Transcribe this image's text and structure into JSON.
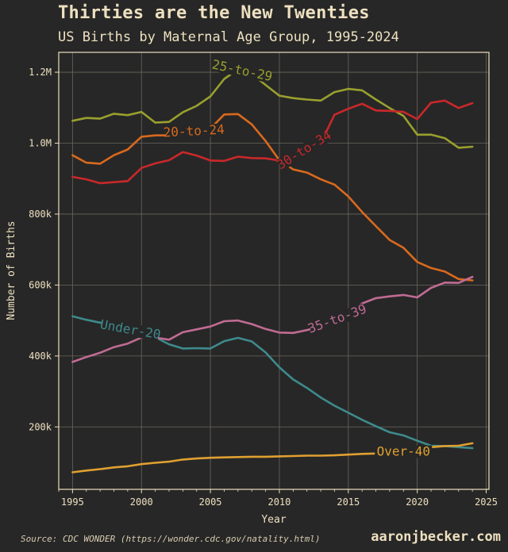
{
  "title": "Thirties are the New Twenties",
  "subtitle": "US Births by Maternal Age Group, 1995-2024",
  "source": "Source: CDC WONDER (https://wonder.cdc.gov/natality.html)",
  "brand": "aaronjbecker.com",
  "chart_data": {
    "type": "line",
    "title": "Thirties are the New Twenties",
    "subtitle": "US Births by Maternal Age Group, 1995-2024",
    "xlabel": "Year",
    "ylabel": "Number of Births",
    "xlim": [
      1994,
      2025.2
    ],
    "ylim": [
      24000,
      1256000
    ],
    "grid": true,
    "legend": "inline labels",
    "x_ticks": [
      1995,
      2000,
      2005,
      2010,
      2015,
      2020,
      2025
    ],
    "y_ticks": [
      200000,
      400000,
      600000,
      800000,
      1000000,
      1200000
    ],
    "y_tick_labels": [
      "200k",
      "400k",
      "600k",
      "800k",
      "1.0M",
      "1.2M"
    ],
    "x": [
      1995,
      1996,
      1997,
      1998,
      1999,
      2000,
      2001,
      2002,
      2003,
      2004,
      2005,
      2006,
      2007,
      2008,
      2009,
      2010,
      2011,
      2012,
      2013,
      2014,
      2015,
      2016,
      2017,
      2018,
      2019,
      2020,
      2021,
      2022,
      2023,
      2024
    ],
    "series": [
      {
        "name": "Under 20",
        "label": "Under-20",
        "color": "#3e8a8c",
        "values": [
          512000,
          502000,
          494000,
          486000,
          475000,
          469000,
          453000,
          433000,
          421000,
          422000,
          421000,
          442000,
          451000,
          441000,
          410000,
          368000,
          334000,
          310000,
          283000,
          260000,
          240000,
          220000,
          202000,
          185000,
          176000,
          161000,
          147000,
          146000,
          143000,
          140000
        ]
      },
      {
        "name": "20 to 24",
        "label": "20-to-24",
        "color": "#d9691e",
        "values": [
          966000,
          945000,
          942000,
          966000,
          982000,
          1018000,
          1022000,
          1022000,
          1032000,
          1034000,
          1041000,
          1081000,
          1082000,
          1053000,
          1006000,
          952000,
          926000,
          917000,
          898000,
          883000,
          850000,
          806000,
          766000,
          727000,
          705000,
          665000,
          648000,
          638000,
          617000,
          613000
        ]
      },
      {
        "name": "25 to 29",
        "label": "25-to-29",
        "color": "#99a02e",
        "values": [
          1063000,
          1071000,
          1069000,
          1083000,
          1079000,
          1088000,
          1058000,
          1060000,
          1087000,
          1105000,
          1132000,
          1181000,
          1208000,
          1195000,
          1164000,
          1134000,
          1127000,
          1123000,
          1120000,
          1144000,
          1153000,
          1149000,
          1123000,
          1099000,
          1077000,
          1024000,
          1024000,
          1014000,
          987000,
          990000
        ]
      },
      {
        "name": "30 to 34",
        "label": "30-to-34",
        "color": "#c9282a",
        "values": [
          905000,
          898000,
          887000,
          890000,
          893000,
          930000,
          943000,
          952000,
          975000,
          965000,
          951000,
          950000,
          962000,
          958000,
          957000,
          951000,
          961000,
          985000,
          1000000,
          1080000,
          1097000,
          1111000,
          1092000,
          1091000,
          1088000,
          1068000,
          1114000,
          1120000,
          1099000,
          1113000
        ]
      },
      {
        "name": "35 to 39",
        "label": "35-to-39",
        "color": "#c06b93",
        "values": [
          383000,
          397000,
          409000,
          425000,
          435000,
          452000,
          452000,
          446000,
          467000,
          475000,
          483000,
          498000,
          500000,
          490000,
          476000,
          466000,
          465000,
          473000,
          484000,
          500000,
          521000,
          548000,
          563000,
          568000,
          572000,
          565000,
          592000,
          607000,
          606000,
          623000
        ]
      },
      {
        "name": "Over 40",
        "label": "Over-40",
        "color": "#e0a030",
        "values": [
          72000,
          77000,
          81000,
          86000,
          89000,
          95000,
          99000,
          102000,
          108000,
          111000,
          113000,
          114000,
          115000,
          116000,
          116000,
          117000,
          118000,
          119000,
          119000,
          120000,
          122000,
          124000,
          125000,
          128000,
          130000,
          134000,
          143000,
          146000,
          147000,
          154000
        ]
      }
    ]
  }
}
